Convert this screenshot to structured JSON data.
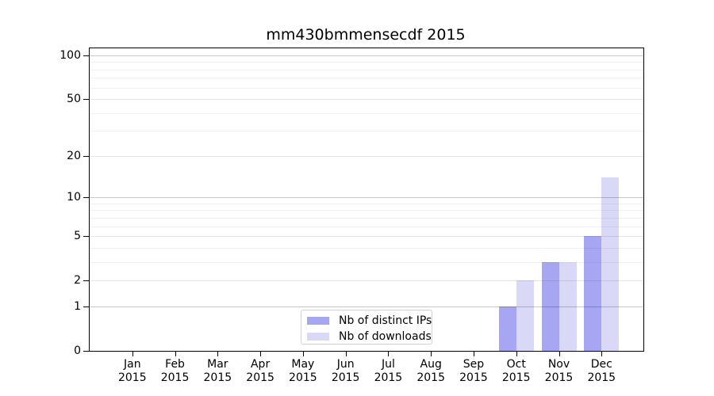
{
  "chart_data": {
    "type": "bar",
    "title": "mm430bmmensecdf 2015",
    "categories": [
      "Jan 2015",
      "Feb 2015",
      "Mar 2015",
      "Apr 2015",
      "May 2015",
      "Jun 2015",
      "Jul 2015",
      "Aug 2015",
      "Sep 2015",
      "Oct 2015",
      "Nov 2015",
      "Dec 2015"
    ],
    "x_tick_labels": [
      {
        "month": "Jan",
        "year": "2015"
      },
      {
        "month": "Feb",
        "year": "2015"
      },
      {
        "month": "Mar",
        "year": "2015"
      },
      {
        "month": "Apr",
        "year": "2015"
      },
      {
        "month": "May",
        "year": "2015"
      },
      {
        "month": "Jun",
        "year": "2015"
      },
      {
        "month": "Jul",
        "year": "2015"
      },
      {
        "month": "Aug",
        "year": "2015"
      },
      {
        "month": "Sep",
        "year": "2015"
      },
      {
        "month": "Oct",
        "year": "2015"
      },
      {
        "month": "Nov",
        "year": "2015"
      },
      {
        "month": "Dec",
        "year": "2015"
      }
    ],
    "series": [
      {
        "name": "Nb of distinct IPs",
        "color": "#a6a6f2",
        "values": [
          0,
          0,
          0,
          0,
          0,
          0,
          0,
          0,
          0,
          1,
          3,
          5
        ]
      },
      {
        "name": "Nb of downloads",
        "color": "#d9d9f7",
        "values": [
          0,
          0,
          0,
          0,
          0,
          0,
          0,
          0,
          0,
          2,
          3,
          14
        ]
      }
    ],
    "y_scale": "log1p",
    "ylim": [
      0,
      112
    ],
    "y_tick_values": [
      0,
      1,
      2,
      5,
      10,
      20,
      50,
      100
    ],
    "y_tick_labels": [
      "0",
      "1",
      "2",
      "5",
      "10",
      "20",
      "50",
      "100"
    ],
    "y_decade_gridlines": [
      1,
      10,
      100
    ],
    "y_mid_gridlines": [
      2,
      5,
      20,
      50
    ],
    "y_minor_gridlines": [
      3,
      4,
      6,
      7,
      8,
      9,
      30,
      40,
      60,
      70,
      80,
      90
    ],
    "grid": "horizontal",
    "legend_position": "lower center",
    "xlabel": "",
    "ylabel": ""
  }
}
